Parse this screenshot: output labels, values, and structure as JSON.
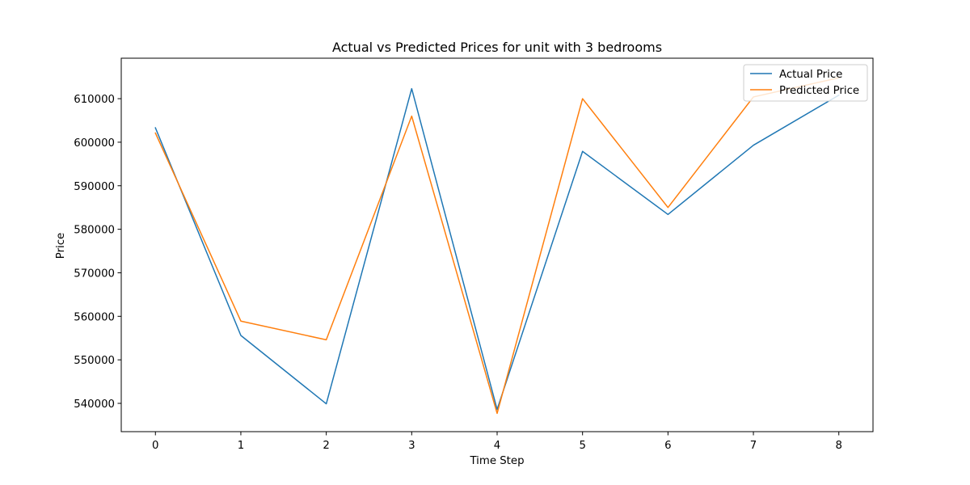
{
  "chart_data": {
    "type": "line",
    "title": "Actual vs Predicted Prices for unit with 3 bedrooms",
    "xlabel": "Time Step",
    "ylabel": "Price",
    "x": [
      0,
      1,
      2,
      3,
      4,
      5,
      6,
      7,
      8
    ],
    "xticks": [
      "0",
      "1",
      "2",
      "3",
      "4",
      "5",
      "6",
      "7",
      "8"
    ],
    "yticks": [
      "540000",
      "550000",
      "560000",
      "570000",
      "580000",
      "590000",
      "600000",
      "610000"
    ],
    "xlim": [
      -0.4,
      8.4
    ],
    "ylim": [
      533500,
      619300
    ],
    "grid": false,
    "legend_position": "top-right",
    "series": [
      {
        "name": "Actual Price",
        "color": "#1f77b4",
        "values": [
          603300,
          555600,
          539900,
          612300,
          538600,
          597900,
          583400,
          599300,
          610800
        ]
      },
      {
        "name": "Predicted Price",
        "color": "#ff7f0e",
        "values": [
          602100,
          558900,
          554600,
          606000,
          537700,
          610000,
          585000,
          610400,
          614800
        ]
      }
    ]
  }
}
